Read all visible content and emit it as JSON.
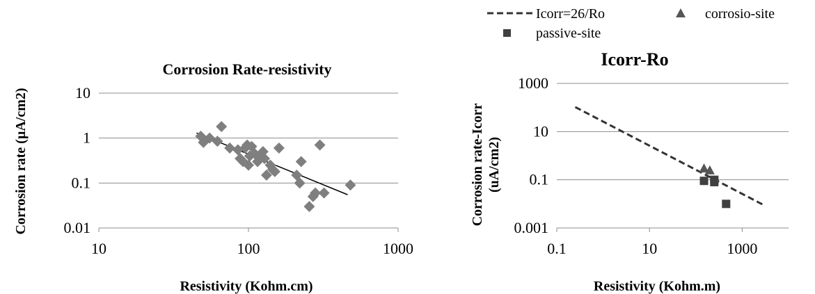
{
  "chart_data": [
    {
      "type": "scatter",
      "title": "Corrosion Rate-resistivity",
      "xlabel": "Resistivity (Kohm.cm)",
      "ylabel": "Corrosion rate (µA/cm2)",
      "x_scale": "log",
      "y_scale": "log",
      "xlim": [
        10,
        1000
      ],
      "ylim": [
        0.01,
        10
      ],
      "x_ticks": [
        "10",
        "100",
        "1000"
      ],
      "y_ticks": [
        "0.01",
        "0.1",
        "1",
        "10"
      ],
      "grid": "horizontal",
      "marker": "diamond",
      "marker_color": "#7f7f7f",
      "trendline_color": "#000000",
      "series": [
        {
          "points": [
            [
              48,
              1.1
            ],
            [
              50,
              0.8
            ],
            [
              55,
              1.0
            ],
            [
              62,
              0.85
            ],
            [
              66,
              1.8
            ],
            [
              75,
              0.6
            ],
            [
              85,
              0.55
            ],
            [
              88,
              0.35
            ],
            [
              92,
              0.3
            ],
            [
              95,
              0.6
            ],
            [
              98,
              0.7
            ],
            [
              100,
              0.25
            ],
            [
              102,
              0.4
            ],
            [
              105,
              0.65
            ],
            [
              110,
              0.45
            ],
            [
              115,
              0.3
            ],
            [
              120,
              0.4
            ],
            [
              125,
              0.5
            ],
            [
              128,
              0.35
            ],
            [
              132,
              0.15
            ],
            [
              140,
              0.25
            ],
            [
              145,
              0.2
            ],
            [
              150,
              0.18
            ],
            [
              160,
              0.6
            ],
            [
              210,
              0.15
            ],
            [
              220,
              0.1
            ],
            [
              225,
              0.3
            ],
            [
              255,
              0.03
            ],
            [
              270,
              0.05
            ],
            [
              280,
              0.06
            ],
            [
              300,
              0.7
            ],
            [
              320,
              0.06
            ],
            [
              480,
              0.09
            ]
          ],
          "trendline": [
            [
              45,
              1.3
            ],
            [
              460,
              0.055
            ]
          ]
        }
      ]
    },
    {
      "type": "scatter",
      "title": "Icorr-Ro",
      "xlabel": "Resistivity (Kohm.m)",
      "ylabel_line1": "Corrosion rate-Icorr",
      "ylabel_line2": "(uA/cm2)",
      "x_scale": "log",
      "y_scale": "log",
      "xlim": [
        0.1,
        10000
      ],
      "ylim": [
        0.001,
        1000
      ],
      "x_ticks": [
        "0.1",
        "10",
        "1000"
      ],
      "y_ticks": [
        "0.001",
        "0.1",
        "10",
        "1000"
      ],
      "grid": "horizontal",
      "legend": {
        "placement": "top",
        "entries": [
          {
            "label": "Icorr=26/Ro",
            "symbol": "dashed-line"
          },
          {
            "label": "corrosio-site",
            "symbol": "triangle"
          },
          {
            "label": "passive-site",
            "symbol": "square"
          }
        ]
      },
      "series": [
        {
          "name": "Icorr=26/Ro",
          "kind": "line",
          "style": "dashed",
          "color": "#333333",
          "x": [
            0.25,
            2800
          ],
          "y": [
            104,
            0.0093
          ]
        },
        {
          "name": "corrosio-site",
          "kind": "scatter",
          "marker": "triangle",
          "color": "#555555",
          "points": [
            [
              150,
              0.3
            ],
            [
              200,
              0.25
            ]
          ]
        },
        {
          "name": "passive-site",
          "kind": "scatter",
          "marker": "square",
          "color": "#404040",
          "points": [
            [
              150,
              0.09
            ],
            [
              250,
              0.1
            ],
            [
              250,
              0.08
            ],
            [
              450,
              0.01
            ]
          ]
        }
      ]
    }
  ]
}
